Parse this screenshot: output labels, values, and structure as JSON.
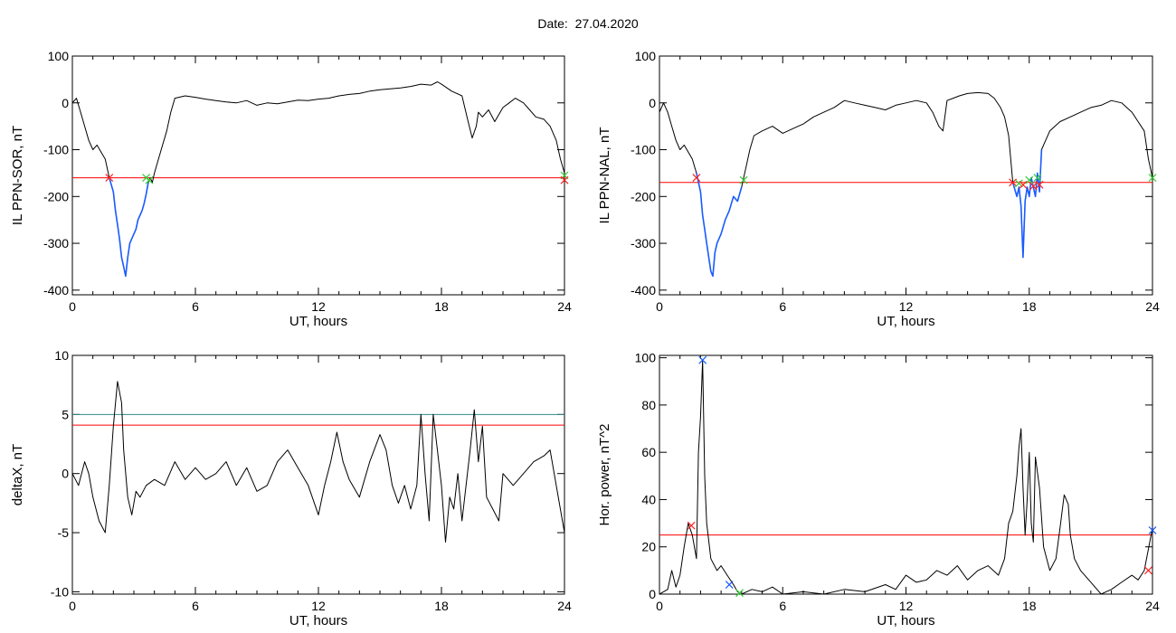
{
  "figure": {
    "title": "Date:  27.04.2020"
  },
  "colors": {
    "trace": "#000000",
    "threshold": "#ff0000",
    "segment": "#1a5cff",
    "secondary_threshold": "#2e8b8b",
    "marker_start": "#ff2020",
    "marker_end": "#33cc33"
  },
  "chart_data": [
    {
      "type": "line",
      "xlabel": "UT, hours",
      "ylabel": "IL PPN-SOR, nT",
      "xlim": [
        0,
        24
      ],
      "ylim": [
        -410,
        100
      ],
      "xticks": [
        0,
        6,
        12,
        18,
        24
      ],
      "yticks": [
        100,
        0,
        -100,
        -200,
        -300,
        -400
      ],
      "series": [
        {
          "x": [
            0,
            0.2,
            0.4,
            0.6,
            0.8,
            1.0,
            1.2,
            1.4,
            1.6,
            1.8,
            2.0,
            2.1,
            2.2,
            2.3,
            2.4,
            2.5,
            2.6,
            2.7,
            2.8,
            2.9,
            3.0,
            3.1,
            3.2,
            3.3,
            3.4,
            3.5,
            3.6,
            3.7,
            3.8,
            3.9,
            4.0,
            4.2,
            4.4,
            4.6,
            4.8,
            5.0,
            5.5,
            6.0,
            6.5,
            7.0,
            7.5,
            8.0,
            8.5,
            9.0,
            9.5,
            10.0,
            10.5,
            11.0,
            11.5,
            12.0,
            12.5,
            13.0,
            13.5,
            14.0,
            14.5,
            15.0,
            15.5,
            16.0,
            16.5,
            17.0,
            17.5,
            17.8,
            18.0,
            18.5,
            19.0,
            19.3,
            19.5,
            19.7,
            19.8,
            20.0,
            20.3,
            20.6,
            21.0,
            21.3,
            21.6,
            22.0,
            22.3,
            22.6,
            23.0,
            23.3,
            23.6,
            23.8,
            24.0
          ],
          "y": [
            0,
            10,
            -20,
            -50,
            -80,
            -100,
            -90,
            -105,
            -120,
            -160,
            -190,
            -230,
            -260,
            -290,
            -330,
            -350,
            -370,
            -330,
            -300,
            -290,
            -280,
            -270,
            -250,
            -240,
            -230,
            -215,
            -195,
            -170,
            -160,
            -170,
            -150,
            -120,
            -90,
            -60,
            -20,
            10,
            15,
            12,
            8,
            5,
            2,
            0,
            5,
            -5,
            0,
            -2,
            2,
            6,
            5,
            8,
            10,
            15,
            18,
            20,
            25,
            28,
            30,
            32,
            35,
            40,
            38,
            45,
            40,
            25,
            15,
            -40,
            -75,
            -50,
            -20,
            -30,
            -15,
            -40,
            -10,
            0,
            10,
            0,
            -15,
            -30,
            -35,
            -50,
            -80,
            -120,
            -150
          ]
        }
      ],
      "highlight_segments": [
        {
          "x_range": [
            1.8,
            3.7
          ]
        }
      ],
      "threshold": -160,
      "markers": [
        {
          "kind": "start",
          "x": 1.8,
          "y": -160
        },
        {
          "kind": "end",
          "x": 3.6,
          "y": -160
        },
        {
          "kind": "end",
          "x": 3.75,
          "y": -165
        },
        {
          "kind": "end",
          "x": 24.0,
          "y": -155
        },
        {
          "kind": "start",
          "x": 24.0,
          "y": -165
        }
      ]
    },
    {
      "type": "line",
      "xlabel": "UT, hours",
      "ylabel": "IL PPN-NAL, nT",
      "xlim": [
        0,
        24
      ],
      "ylim": [
        -410,
        100
      ],
      "xticks": [
        0,
        6,
        12,
        18,
        24
      ],
      "yticks": [
        100,
        0,
        -100,
        -200,
        -300,
        -400
      ],
      "series": [
        {
          "x": [
            0,
            0.2,
            0.4,
            0.6,
            0.8,
            1.0,
            1.2,
            1.4,
            1.6,
            1.8,
            2.0,
            2.1,
            2.2,
            2.3,
            2.4,
            2.5,
            2.6,
            2.7,
            2.8,
            3.0,
            3.2,
            3.4,
            3.6,
            3.8,
            4.0,
            4.2,
            4.4,
            4.6,
            5.0,
            5.5,
            6.0,
            6.5,
            7.0,
            7.5,
            8.0,
            8.5,
            9.0,
            9.5,
            10.0,
            10.5,
            11.0,
            11.5,
            12.0,
            12.5,
            13.0,
            13.3,
            13.6,
            13.8,
            14.0,
            14.3,
            14.6,
            15.0,
            15.5,
            16.0,
            16.3,
            16.6,
            16.8,
            17.0,
            17.2,
            17.4,
            17.5,
            17.6,
            17.7,
            17.8,
            17.9,
            18.0,
            18.1,
            18.2,
            18.3,
            18.4,
            18.5,
            18.6,
            18.8,
            19.0,
            19.5,
            20.0,
            20.5,
            21.0,
            21.5,
            22.0,
            22.5,
            23.0,
            23.3,
            23.6,
            23.8,
            24.0
          ],
          "y": [
            -20,
            0,
            -20,
            -50,
            -80,
            -100,
            -90,
            -105,
            -120,
            -150,
            -190,
            -240,
            -270,
            -300,
            -330,
            -360,
            -370,
            -320,
            -300,
            -280,
            -250,
            -230,
            -200,
            -210,
            -180,
            -140,
            -100,
            -70,
            -60,
            -50,
            -65,
            -55,
            -45,
            -30,
            -20,
            -10,
            5,
            0,
            -5,
            -10,
            -15,
            -5,
            0,
            5,
            0,
            -20,
            -50,
            -60,
            5,
            10,
            15,
            20,
            22,
            20,
            10,
            -10,
            -30,
            -70,
            -170,
            -200,
            -180,
            -220,
            -330,
            -210,
            -180,
            -200,
            -160,
            -180,
            -200,
            -150,
            -190,
            -100,
            -80,
            -60,
            -40,
            -30,
            -20,
            -10,
            -5,
            5,
            0,
            -20,
            -40,
            -60,
            -120,
            -160
          ]
        }
      ],
      "highlight_segments": [
        {
          "x_range": [
            1.8,
            4.1
          ]
        },
        {
          "x_range": [
            17.2,
            18.6
          ]
        }
      ],
      "threshold": -170,
      "markers": [
        {
          "kind": "start",
          "x": 1.8,
          "y": -160
        },
        {
          "kind": "end",
          "x": 4.1,
          "y": -165
        },
        {
          "kind": "start",
          "x": 17.2,
          "y": -170
        },
        {
          "kind": "end",
          "x": 17.5,
          "y": -172
        },
        {
          "kind": "start",
          "x": 17.7,
          "y": -175
        },
        {
          "kind": "end",
          "x": 18.0,
          "y": -165
        },
        {
          "kind": "start",
          "x": 18.2,
          "y": -178
        },
        {
          "kind": "end",
          "x": 18.4,
          "y": -160
        },
        {
          "kind": "start",
          "x": 18.5,
          "y": -175
        },
        {
          "kind": "end",
          "x": 24.0,
          "y": -160
        }
      ]
    },
    {
      "type": "line",
      "xlabel": "UT, hours",
      "ylabel": "deltaX, nT",
      "xlim": [
        0,
        24
      ],
      "ylim": [
        -10.2,
        10
      ],
      "xticks": [
        0,
        6,
        12,
        18,
        24
      ],
      "yticks": [
        10,
        5,
        0,
        -5,
        -10
      ],
      "series": [
        {
          "x": [
            0,
            0.3,
            0.6,
            0.8,
            1.0,
            1.3,
            1.6,
            1.8,
            2.0,
            2.2,
            2.4,
            2.5,
            2.7,
            2.9,
            3.1,
            3.3,
            3.6,
            4.0,
            4.5,
            5.0,
            5.5,
            6.0,
            6.5,
            7.0,
            7.5,
            8.0,
            8.5,
            9.0,
            9.5,
            10.0,
            10.5,
            11.0,
            11.5,
            12.0,
            12.3,
            12.6,
            12.9,
            13.2,
            13.5,
            14.0,
            14.5,
            15.0,
            15.3,
            15.6,
            15.9,
            16.2,
            16.5,
            16.8,
            17.0,
            17.2,
            17.4,
            17.6,
            17.8,
            18.0,
            18.2,
            18.4,
            18.6,
            18.8,
            19.0,
            19.2,
            19.4,
            19.6,
            19.8,
            20.0,
            20.2,
            20.5,
            20.8,
            21.0,
            21.5,
            22.0,
            22.5,
            23.0,
            23.3,
            23.6,
            24.0
          ],
          "y": [
            0,
            -1,
            1,
            0,
            -2,
            -4,
            -5,
            -1,
            4,
            7.8,
            6,
            2,
            -2,
            -3.5,
            -1.5,
            -2,
            -1,
            -0.5,
            -1,
            1,
            -0.5,
            0.5,
            -0.5,
            0,
            1,
            -1,
            0.5,
            -1.5,
            -1,
            1,
            2,
            0.5,
            -1,
            -3.5,
            -1,
            1,
            3.5,
            1,
            -0.5,
            -2,
            1,
            3.3,
            2,
            -1,
            -2.5,
            -1,
            -3,
            -1,
            5,
            0,
            -4,
            5,
            2,
            -1,
            -5.8,
            -2,
            -3,
            0,
            -4,
            -1,
            2,
            5.4,
            1,
            4,
            -2,
            -3,
            -4,
            0,
            -1,
            0,
            1,
            1.5,
            2,
            -1,
            -5
          ]
        }
      ],
      "thresholds": [
        {
          "y": 5,
          "kind": "secondary"
        },
        {
          "y": 4.1,
          "kind": "primary"
        }
      ]
    },
    {
      "type": "line",
      "xlabel": "UT, hours",
      "ylabel": "Hor. power, nT^2",
      "xlim": [
        0,
        24
      ],
      "ylim": [
        0,
        101
      ],
      "xticks": [
        0,
        6,
        12,
        18,
        24
      ],
      "yticks": [
        100,
        80,
        60,
        40,
        20,
        0
      ],
      "series": [
        {
          "x": [
            0,
            0.4,
            0.6,
            0.8,
            1.0,
            1.2,
            1.4,
            1.6,
            1.8,
            1.9,
            2.0,
            2.1,
            2.2,
            2.3,
            2.5,
            2.8,
            3.0,
            3.3,
            3.6,
            3.8,
            4.0,
            4.5,
            5.0,
            5.5,
            6.0,
            7.0,
            8.0,
            9.0,
            10.0,
            11.0,
            11.5,
            12.0,
            12.5,
            13.0,
            13.5,
            14.0,
            14.5,
            15.0,
            15.5,
            16.0,
            16.5,
            16.8,
            17.0,
            17.2,
            17.4,
            17.5,
            17.6,
            17.7,
            17.8,
            17.9,
            18.0,
            18.1,
            18.2,
            18.3,
            18.5,
            18.7,
            19.0,
            19.3,
            19.5,
            19.7,
            19.9,
            20.0,
            20.2,
            20.5,
            21.0,
            21.5,
            22.0,
            22.5,
            23.0,
            23.3,
            23.6,
            24.0
          ],
          "y": [
            0,
            2,
            10,
            3,
            8,
            20,
            30,
            25,
            15,
            60,
            75,
            99,
            50,
            30,
            15,
            10,
            12,
            8,
            4,
            1,
            0,
            2,
            1,
            3,
            0,
            1,
            0,
            2,
            1,
            4,
            2,
            8,
            5,
            6,
            10,
            8,
            12,
            6,
            10,
            12,
            8,
            15,
            30,
            35,
            50,
            62,
            70,
            45,
            25,
            40,
            60,
            30,
            22,
            58,
            45,
            20,
            10,
            15,
            28,
            42,
            38,
            25,
            15,
            10,
            5,
            0,
            2,
            5,
            8,
            6,
            10,
            28
          ]
        }
      ],
      "threshold": 25,
      "markers": [
        {
          "kind": "start",
          "x": 1.55,
          "y": 29
        },
        {
          "kind": "blue",
          "x": 2.1,
          "y": 99
        },
        {
          "kind": "blue",
          "x": 3.4,
          "y": 4
        },
        {
          "kind": "end",
          "x": 3.9,
          "y": 0.5
        },
        {
          "kind": "blue",
          "x": 24.0,
          "y": 27
        },
        {
          "kind": "start",
          "x": 23.8,
          "y": 10
        }
      ]
    }
  ]
}
